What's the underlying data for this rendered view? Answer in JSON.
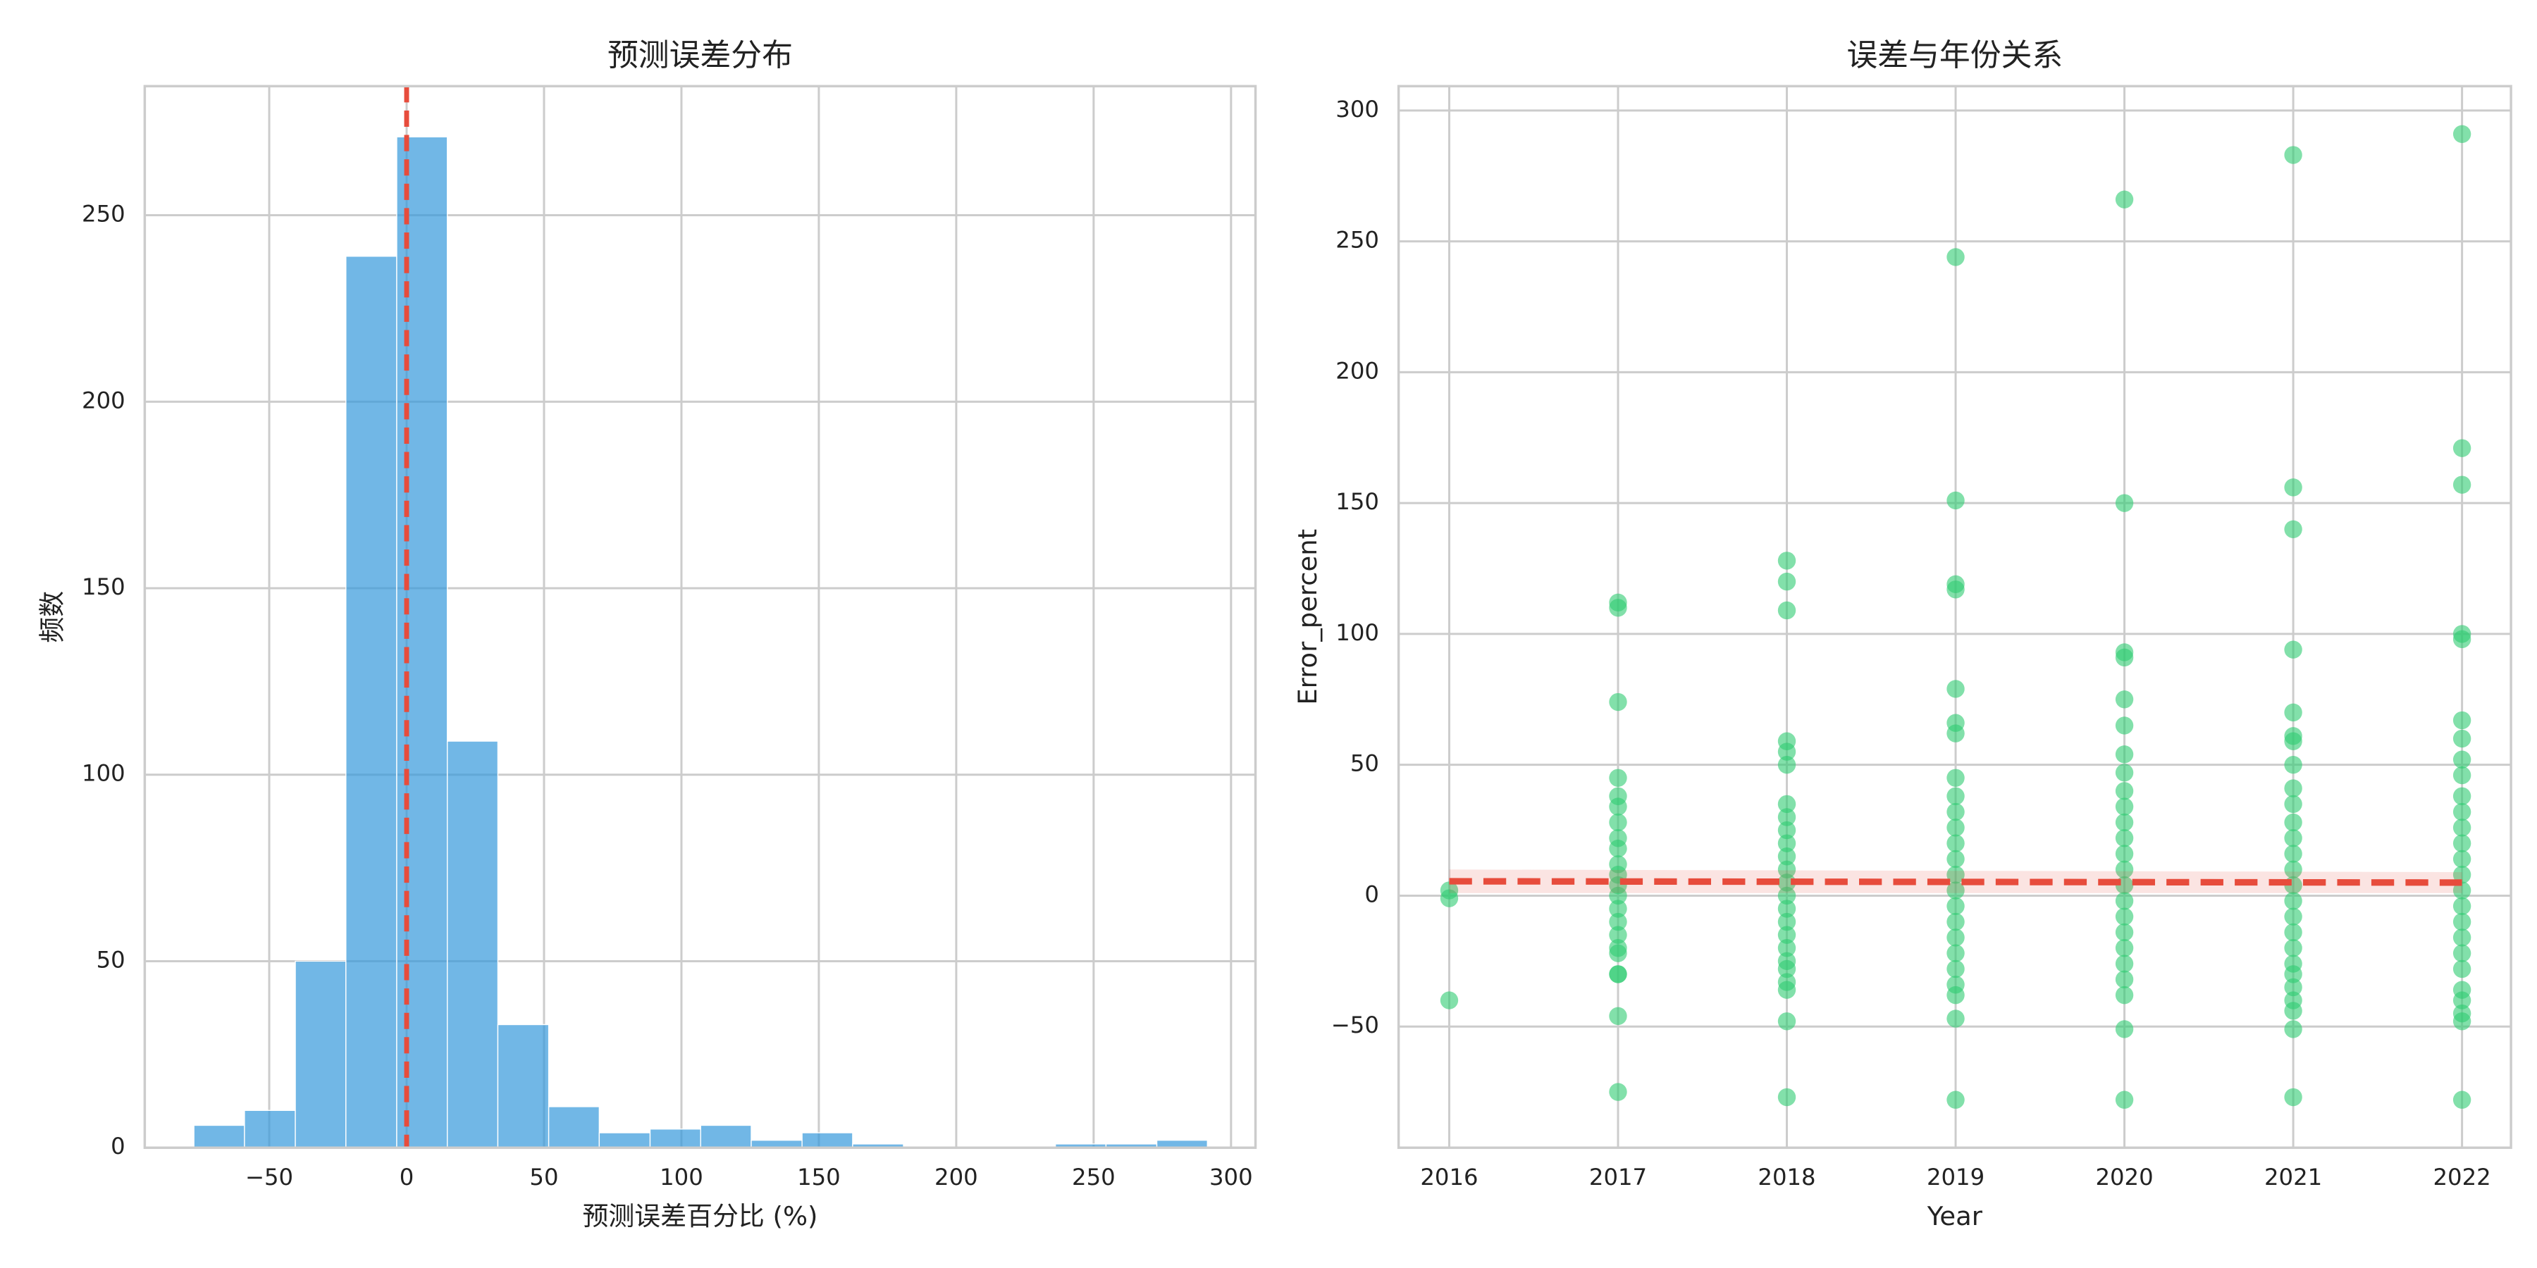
{
  "chart_data": [
    {
      "type": "histogram",
      "title": "预测误差分布",
      "xlabel": "预测误差百分比 (%)",
      "ylabel": "频数",
      "color": "#3498db",
      "bins": [
        -77.4,
        -59.0,
        -40.5,
        -22.1,
        -3.6,
        14.8,
        33.2,
        51.7,
        70.1,
        88.6,
        107.0,
        125.4,
        143.9,
        162.3,
        180.8,
        199.2,
        217.6,
        236.1,
        254.5,
        273.0,
        291.4
      ],
      "counts": [
        6,
        10,
        50,
        239,
        271,
        109,
        33,
        11,
        4,
        5,
        6,
        2,
        4,
        1,
        0,
        0,
        0,
        1,
        1,
        2
      ],
      "vline": 0,
      "vline_color": "#e74c3c",
      "xlim": [
        -95.3,
        308.9
      ],
      "xticks": [
        {
          "value": -50,
          "label": "−50"
        },
        0,
        50,
        100,
        150,
        200,
        250,
        300
      ],
      "ylim": [
        0,
        284.6
      ],
      "yticks": [
        0,
        50,
        100,
        150,
        200,
        250
      ],
      "grid": true
    },
    {
      "type": "scatter",
      "title": "误差与年份关系",
      "xlabel": "Year",
      "ylabel": "Error_percent",
      "color": "#2ecc71",
      "line_color": "#e74c3c",
      "x": [
        2016,
        2016,
        2016,
        2017,
        2017,
        2017,
        2017,
        2017,
        2017,
        2017,
        2017,
        2017,
        2017,
        2017,
        2017,
        2017,
        2017,
        2017,
        2017,
        2017,
        2017,
        2017,
        2017,
        2017,
        2017,
        2018,
        2018,
        2018,
        2018,
        2018,
        2018,
        2018,
        2018,
        2018,
        2018,
        2018,
        2018,
        2018,
        2018,
        2018,
        2018,
        2018,
        2018,
        2018,
        2018,
        2018,
        2018,
        2018,
        2018,
        2019,
        2019,
        2019,
        2019,
        2019,
        2019,
        2019,
        2019,
        2019,
        2019,
        2019,
        2019,
        2019,
        2019,
        2019,
        2019,
        2019,
        2019,
        2019,
        2019,
        2019,
        2019,
        2019,
        2019,
        2020,
        2020,
        2020,
        2020,
        2020,
        2020,
        2020,
        2020,
        2020,
        2020,
        2020,
        2020,
        2020,
        2020,
        2020,
        2020,
        2020,
        2020,
        2020,
        2020,
        2020,
        2020,
        2020,
        2020,
        2021,
        2021,
        2021,
        2021,
        2021,
        2021,
        2021,
        2021,
        2021,
        2021,
        2021,
        2021,
        2021,
        2021,
        2021,
        2021,
        2021,
        2021,
        2021,
        2021,
        2021,
        2021,
        2021,
        2021,
        2021,
        2021,
        2022,
        2022,
        2022,
        2022,
        2022,
        2022,
        2022,
        2022,
        2022,
        2022,
        2022,
        2022,
        2022,
        2022,
        2022,
        2022,
        2022,
        2022,
        2022,
        2022,
        2022,
        2022,
        2022,
        2022,
        2022,
        2022
      ],
      "y": [
        2,
        -1,
        -40,
        112,
        110,
        74,
        45,
        38,
        34,
        28,
        22,
        18,
        12,
        8,
        4,
        0,
        -5,
        -10,
        -15,
        -20,
        -22,
        -30,
        -30,
        -46,
        -75,
        128,
        120,
        109,
        59,
        55,
        50,
        35,
        30,
        25,
        20,
        15,
        10,
        5,
        0,
        -5,
        -10,
        -15,
        -20,
        -25,
        -28,
        -33,
        -36,
        -48,
        -77,
        244,
        151,
        119,
        117,
        79,
        66,
        62,
        45,
        38,
        32,
        26,
        20,
        14,
        8,
        2,
        -4,
        -10,
        -16,
        -22,
        -28,
        -34,
        -38,
        -47,
        -78,
        266,
        150,
        93,
        91,
        75,
        65,
        54,
        47,
        40,
        34,
        28,
        22,
        16,
        10,
        4,
        -2,
        -8,
        -14,
        -20,
        -26,
        -32,
        -38,
        -51,
        -78,
        283,
        156,
        140,
        94,
        70,
        61,
        59,
        50,
        41,
        35,
        28,
        22,
        16,
        10,
        4,
        -2,
        -8,
        -14,
        -20,
        -26,
        -30,
        -35,
        -40,
        -44,
        -51,
        -77,
        291,
        171,
        157,
        100,
        98,
        67,
        60,
        52,
        46,
        38,
        32,
        26,
        20,
        14,
        8,
        2,
        -4,
        -10,
        -16,
        -22,
        -28,
        -36,
        -40,
        -45,
        -48,
        -78
      ],
      "regression": {
        "x": [
          2016,
          2022
        ],
        "y": [
          5.5,
          5.0
        ],
        "ci_lower": [
          1,
          1
        ],
        "ci_upper": [
          10,
          9
        ]
      },
      "xlim": [
        2015.7,
        2022.29
      ],
      "xticks": [
        2016,
        2017,
        2018,
        2019,
        2020,
        2021,
        2022
      ],
      "ylim": [
        -96.3,
        309.3
      ],
      "yticks": [
        {
          "value": -50,
          "label": "−50"
        },
        0,
        50,
        100,
        150,
        200,
        250,
        300
      ],
      "grid": true
    }
  ]
}
